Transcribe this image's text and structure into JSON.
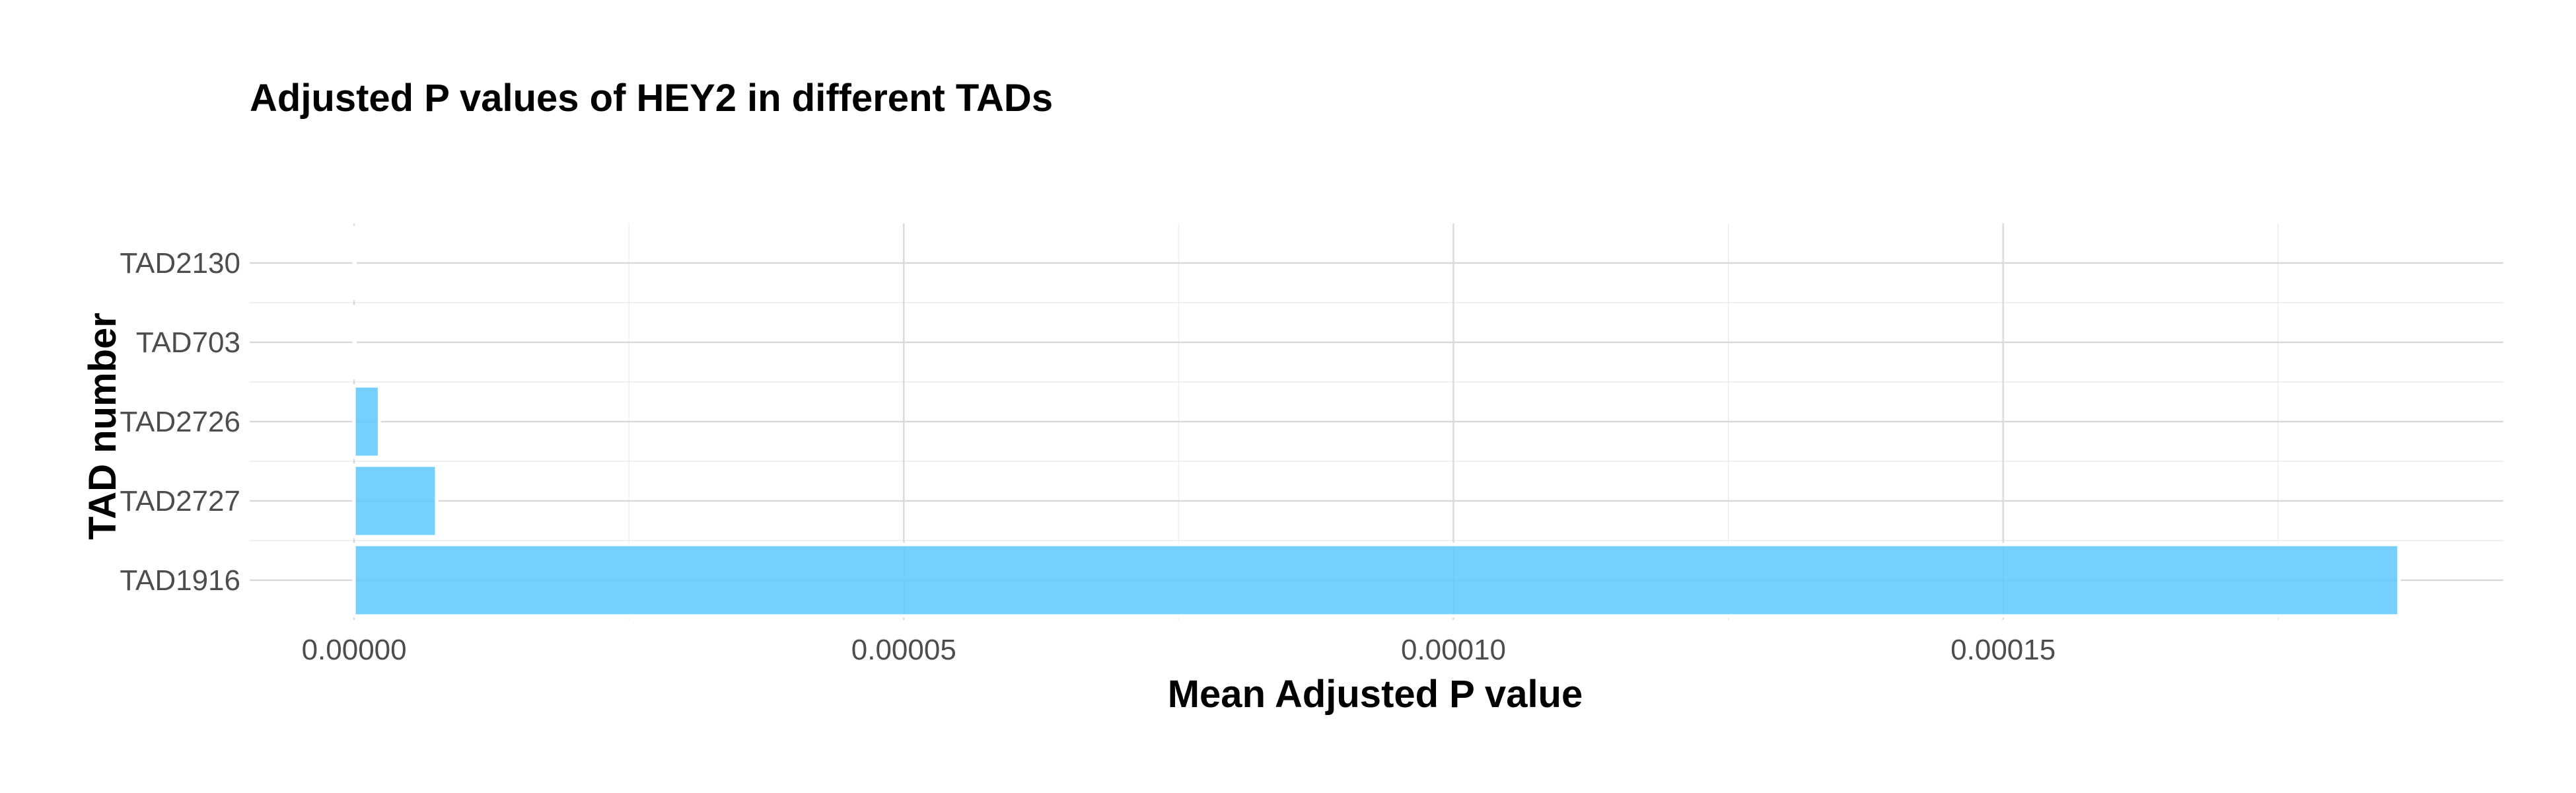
{
  "chart_data": {
    "type": "bar",
    "orientation": "horizontal",
    "title": "Adjusted P values of HEY2 in different TADs",
    "xlabel": "Mean Adjusted P value",
    "ylabel": "TAD number",
    "categories": [
      "TAD1916",
      "TAD2727",
      "TAD2726",
      "TAD703",
      "TAD2130"
    ],
    "values": [
      0.000186,
      7.5e-06,
      2.3e-06,
      3e-08,
      2e-08
    ],
    "xlim": [
      -9.5e-06,
      0.0001955
    ],
    "x_ticks": [
      0.0,
      5e-05,
      0.0001,
      0.00015
    ],
    "x_tick_labels": [
      "0.00000",
      "0.00005",
      "0.00010",
      "0.00015"
    ],
    "grid": true,
    "bar_color": "#5ec8fb",
    "bar_opacity": 0.85,
    "bar_edge_color": "#ffffff",
    "legend": "none"
  }
}
